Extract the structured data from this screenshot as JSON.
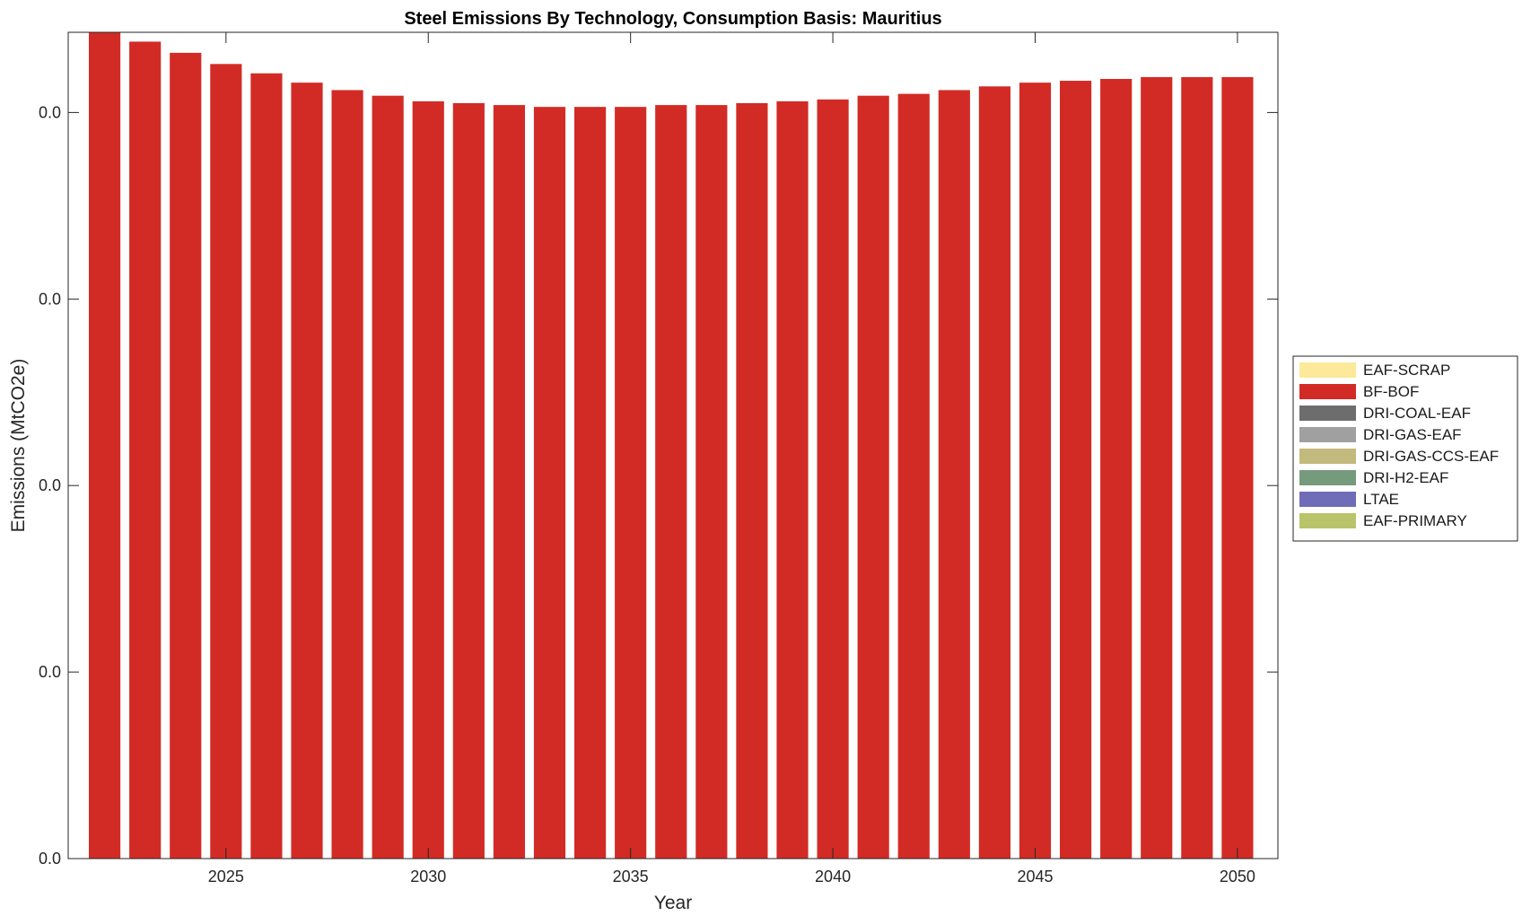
{
  "chart_data": {
    "type": "bar",
    "stacked": true,
    "title": "Steel Emissions By Technology, Consumption Basis: Mauritius",
    "xlabel": "Year",
    "ylabel": "Emissions (MtCO2e)",
    "x": [
      2022,
      2023,
      2024,
      2025,
      2026,
      2027,
      2028,
      2029,
      2030,
      2031,
      2032,
      2033,
      2034,
      2035,
      2036,
      2037,
      2038,
      2039,
      2040,
      2041,
      2042,
      2043,
      2044,
      2045,
      2046,
      2047,
      2048,
      2049,
      2050
    ],
    "xlim": [
      2021.1,
      2051.0
    ],
    "xticks": [
      2025,
      2030,
      2035,
      2040,
      2045,
      2050
    ],
    "xtick_labels": [
      "2025",
      "2030",
      "2035",
      "2040",
      "2045",
      "2050"
    ],
    "ylim": [
      0,
      0.0443
    ],
    "yticks": [
      0,
      0.01,
      0.02,
      0.03,
      0.04
    ],
    "ytick_labels": [
      "0.0",
      "0.0",
      "0.0",
      "0.0",
      "0.0"
    ],
    "grid": false,
    "legend_position": "right",
    "series": [
      {
        "name": "EAF-PRIMARY",
        "color": "#b9c46a",
        "values": [
          0,
          0,
          0,
          0,
          0,
          0,
          0,
          0,
          0,
          0,
          0,
          0,
          0,
          0,
          0,
          0,
          0,
          0,
          0,
          0,
          0,
          0,
          0,
          0,
          0,
          0,
          0,
          0,
          0
        ]
      },
      {
        "name": "LTAE",
        "color": "#6f6cb8",
        "values": [
          0,
          0,
          0,
          0,
          0,
          0,
          0,
          0,
          0,
          0,
          0,
          0,
          0,
          0,
          0,
          0,
          0,
          0,
          0,
          0,
          0,
          0,
          0,
          0,
          0,
          0,
          0,
          0,
          0
        ]
      },
      {
        "name": "DRI-H2-EAF",
        "color": "#769a7c",
        "values": [
          0,
          0,
          0,
          0,
          0,
          0,
          0,
          0,
          0,
          0,
          0,
          0,
          0,
          0,
          0,
          0,
          0,
          0,
          0,
          0,
          0,
          0,
          0,
          0,
          0,
          0,
          0,
          0,
          0
        ]
      },
      {
        "name": "DRI-GAS-CCS-EAF",
        "color": "#c2b97c",
        "values": [
          0,
          0,
          0,
          0,
          0,
          0,
          0,
          0,
          0,
          0,
          0,
          0,
          0,
          0,
          0,
          0,
          0,
          0,
          0,
          0,
          0,
          0,
          0,
          0,
          0,
          0,
          0,
          0,
          0
        ]
      },
      {
        "name": "DRI-GAS-EAF",
        "color": "#a0a0a0",
        "values": [
          0,
          0,
          0,
          0,
          0,
          0,
          0,
          0,
          0,
          0,
          0,
          0,
          0,
          0,
          0,
          0,
          0,
          0,
          0,
          0,
          0,
          0,
          0,
          0,
          0,
          0,
          0,
          0,
          0
        ]
      },
      {
        "name": "DRI-COAL-EAF",
        "color": "#6d6d6d",
        "values": [
          0,
          0,
          0,
          0,
          0,
          0,
          0,
          0,
          0,
          0,
          0,
          0,
          0,
          0,
          0,
          0,
          0,
          0,
          0,
          0,
          0,
          0,
          0,
          0,
          0,
          0,
          0,
          0,
          0
        ]
      },
      {
        "name": "BF-BOF",
        "color": "#d22b25",
        "values": [
          0.0443,
          0.0438,
          0.0432,
          0.0426,
          0.0421,
          0.0416,
          0.0412,
          0.0409,
          0.0406,
          0.0405,
          0.0404,
          0.0403,
          0.0403,
          0.0403,
          0.0404,
          0.0404,
          0.0405,
          0.0406,
          0.0407,
          0.0409,
          0.041,
          0.0412,
          0.0414,
          0.0416,
          0.0417,
          0.0418,
          0.0419,
          0.0419,
          0.0419
        ]
      },
      {
        "name": "EAF-SCRAP",
        "color": "#fde99a",
        "values": [
          0,
          0,
          0,
          0,
          0,
          0,
          0,
          0,
          0,
          0,
          0,
          0,
          0,
          0,
          0,
          0,
          0,
          0,
          0,
          0,
          0,
          0,
          0,
          0,
          0,
          0,
          0,
          0,
          0
        ]
      }
    ]
  }
}
